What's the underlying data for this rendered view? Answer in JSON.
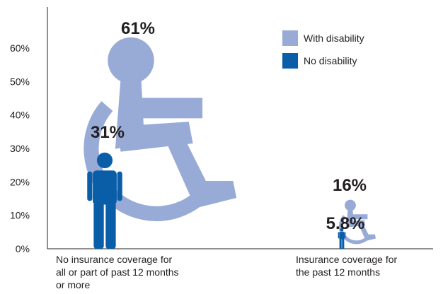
{
  "chart_data": {
    "type": "bar",
    "title": "",
    "xlabel": "",
    "ylabel": "",
    "ylim": [
      0,
      60
    ],
    "y_ticks": [
      0,
      10,
      20,
      30,
      40,
      50,
      60
    ],
    "y_tick_labels": [
      "0%",
      "10%",
      "20%",
      "30%",
      "40%",
      "50%",
      "60%"
    ],
    "categories": [
      "No insurance coverage for\nall or part of past 12  months\nor more",
      "Insurance coverage for\nthe past 12 months"
    ],
    "series": [
      {
        "name": "With disability",
        "values": [
          61,
          16
        ],
        "value_labels": [
          "61%",
          "16%"
        ],
        "color": "#98aad6",
        "icon": "wheelchair-icon"
      },
      {
        "name": "No disability",
        "values": [
          31,
          5.8
        ],
        "value_labels": [
          "31%",
          "5.8%"
        ],
        "color": "#0a5ea8",
        "icon": "person-icon"
      }
    ],
    "legend_position": "top-right",
    "grid": false
  }
}
